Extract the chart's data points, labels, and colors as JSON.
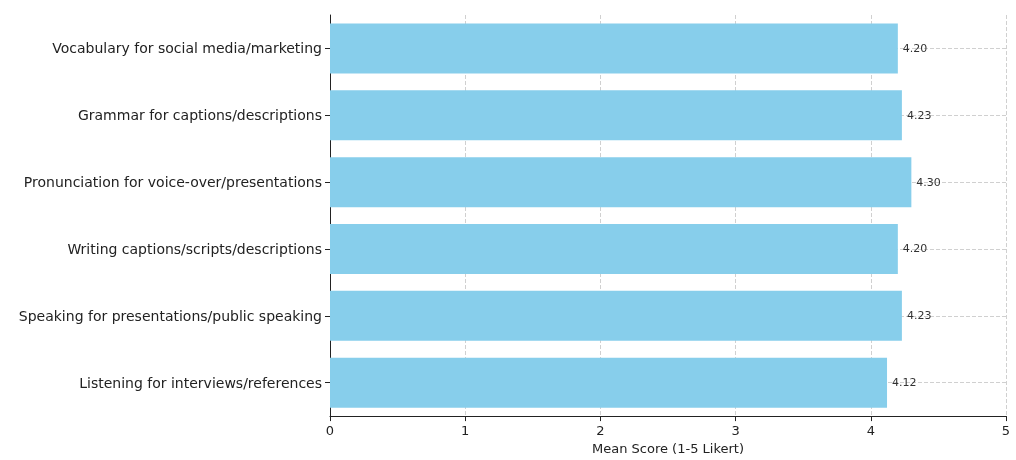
{
  "chart_data": {
    "type": "bar",
    "orientation": "horizontal",
    "xlabel": "Mean Score (1-5 Likert)",
    "categories": [
      "Vocabulary for social media/marketing",
      "Grammar for captions/descriptions",
      "Pronunciation for voice-over/presentations",
      "Writing captions/scripts/descriptions",
      "Speaking for presentations/public speaking",
      "Listening for interviews/references"
    ],
    "values": [
      4.2,
      4.23,
      4.3,
      4.2,
      4.23,
      4.12
    ],
    "value_labels": [
      "4.20",
      "4.23",
      "4.30",
      "4.20",
      "4.23",
      "4.12"
    ],
    "color": "#87ceeb",
    "xlim": [
      0,
      5
    ],
    "xticks": [
      0,
      1,
      2,
      3,
      4,
      5
    ],
    "grid": true
  }
}
